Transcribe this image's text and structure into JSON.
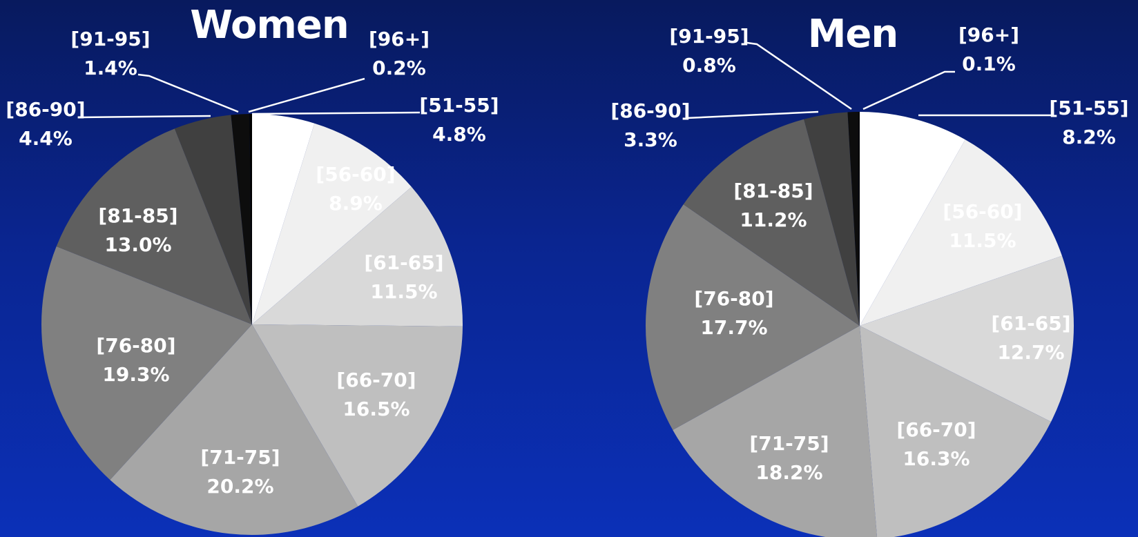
{
  "chart_data": [
    {
      "type": "pie",
      "title": "Women",
      "slices": [
        {
          "label": "[51-55]",
          "pct_text": "4.8%",
          "value": 4.8,
          "color": "#ffffff",
          "label_color": "#ffffff"
        },
        {
          "label": "[56-60]",
          "pct_text": "8.9%",
          "value": 8.9,
          "color": "#f0f0f0",
          "label_color": "#ffffff"
        },
        {
          "label": "[61-65]",
          "pct_text": "11.5%",
          "value": 11.5,
          "color": "#d9d9d9",
          "label_color": "#ffffff"
        },
        {
          "label": "[66-70]",
          "pct_text": "16.5%",
          "value": 16.5,
          "color": "#bfbfbf",
          "label_color": "#ffffff"
        },
        {
          "label": "[71-75]",
          "pct_text": "20.2%",
          "value": 20.2,
          "color": "#a6a6a6",
          "label_color": "#ffffff"
        },
        {
          "label": "[76-80]",
          "pct_text": "19.3%",
          "value": 19.3,
          "color": "#808080",
          "label_color": "#ffffff"
        },
        {
          "label": "[81-85]",
          "pct_text": "13.0%",
          "value": 13.0,
          "color": "#5f5f5f",
          "label_color": "#ffffff"
        },
        {
          "label": "[86-90]",
          "pct_text": "4.4%",
          "value": 4.4,
          "color": "#404040",
          "label_color": "#ffffff"
        },
        {
          "label": "[91-95]",
          "pct_text": "1.4%",
          "value": 1.4,
          "color": "#0d0d0d",
          "label_color": "#ffffff"
        },
        {
          "label": "[96+]",
          "pct_text": "0.2%",
          "value": 0.2,
          "color": "#000000",
          "label_color": "#ffffff"
        }
      ]
    },
    {
      "type": "pie",
      "title": "Men",
      "slices": [
        {
          "label": "[51-55]",
          "pct_text": "8.2%",
          "value": 8.2,
          "color": "#ffffff",
          "label_color": "#ffffff"
        },
        {
          "label": "[56-60]",
          "pct_text": "11.5%",
          "value": 11.5,
          "color": "#f0f0f0",
          "label_color": "#ffffff"
        },
        {
          "label": "[61-65]",
          "pct_text": "12.7%",
          "value": 12.7,
          "color": "#d9d9d9",
          "label_color": "#ffffff"
        },
        {
          "label": "[66-70]",
          "pct_text": "16.3%",
          "value": 16.3,
          "color": "#bfbfbf",
          "label_color": "#ffffff"
        },
        {
          "label": "[71-75]",
          "pct_text": "18.2%",
          "value": 18.2,
          "color": "#a6a6a6",
          "label_color": "#ffffff"
        },
        {
          "label": "[76-80]",
          "pct_text": "17.7%",
          "value": 17.7,
          "color": "#808080",
          "label_color": "#ffffff"
        },
        {
          "label": "[81-85]",
          "pct_text": "11.2%",
          "value": 11.2,
          "color": "#5f5f5f",
          "label_color": "#ffffff"
        },
        {
          "label": "[86-90]",
          "pct_text": "3.3%",
          "value": 3.3,
          "color": "#404040",
          "label_color": "#ffffff"
        },
        {
          "label": "[91-95]",
          "pct_text": "0.8%",
          "value": 0.8,
          "color": "#0d0d0d",
          "label_color": "#ffffff"
        },
        {
          "label": "[96+]",
          "pct_text": "0.1%",
          "value": 0.1,
          "color": "#000000",
          "label_color": "#ffffff"
        }
      ]
    }
  ]
}
